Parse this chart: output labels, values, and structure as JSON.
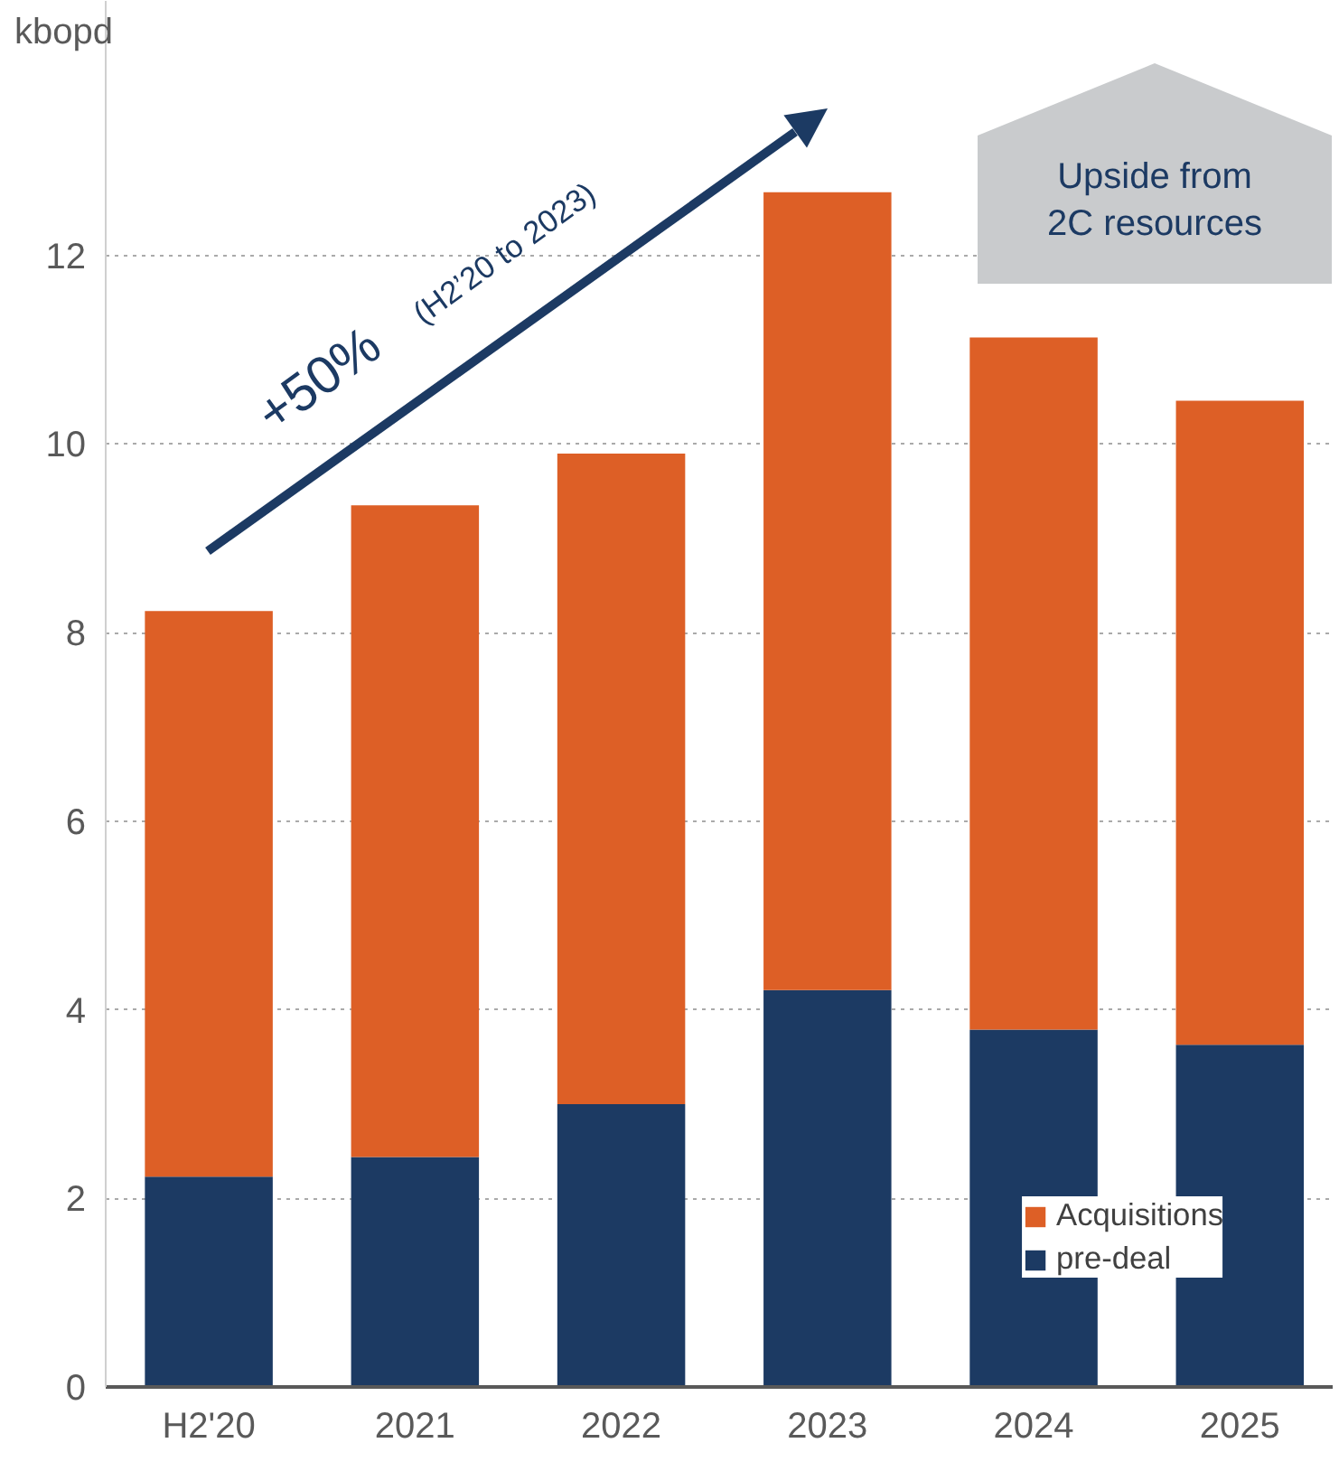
{
  "chart_data": {
    "type": "bar",
    "stacked": true,
    "categories": [
      "H2'20",
      "2021",
      "2022",
      "2023",
      "2024",
      "2025"
    ],
    "series": [
      {
        "name": "pre-deal",
        "color": "#1c3a63",
        "values": [
          2.23,
          2.44,
          3.0,
          4.21,
          3.79,
          3.63
        ]
      },
      {
        "name": "Acquisitions",
        "color": "#dd5f26",
        "values": [
          6.0,
          6.91,
          6.9,
          8.46,
          7.34,
          6.83
        ]
      }
    ],
    "ylim": [
      0,
      14.7
    ],
    "yticks": [
      0,
      2,
      4,
      6,
      8,
      10,
      12
    ],
    "grid": "y",
    "legend": "bottom right",
    "annotations": [
      "kbopd",
      "+50% (H2’20 to 2023)",
      "Upside from\n2C resources"
    ]
  }
}
